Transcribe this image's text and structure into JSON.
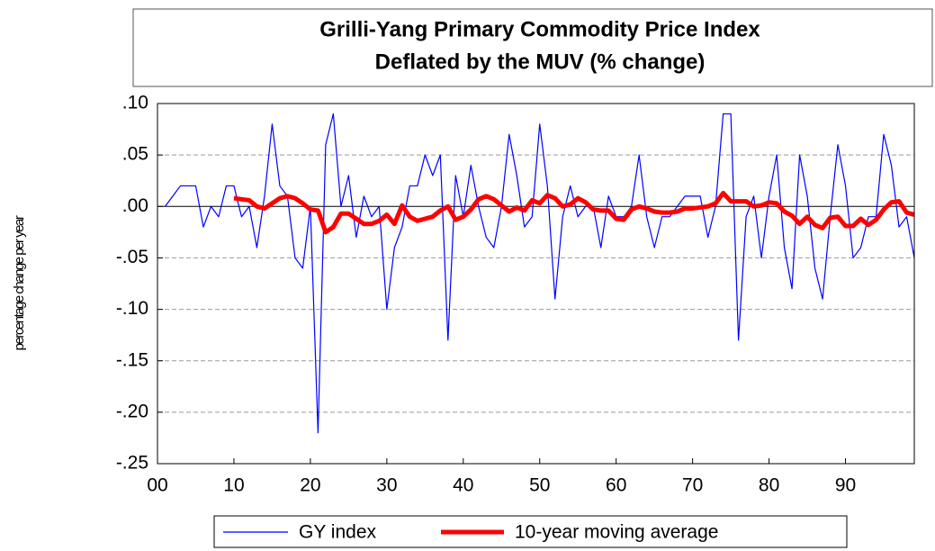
{
  "chart_data": {
    "type": "line",
    "title": "Grilli-Yang Primary Commodity Price Index",
    "subtitle": "Deflated by the MUV  (% change)",
    "y_label": "percentage change per year",
    "x": [
      1,
      2,
      3,
      4,
      5,
      6,
      7,
      8,
      9,
      10,
      11,
      12,
      13,
      14,
      15,
      16,
      17,
      18,
      19,
      20,
      21,
      22,
      23,
      24,
      25,
      26,
      27,
      28,
      29,
      30,
      31,
      32,
      33,
      34,
      35,
      36,
      37,
      38,
      39,
      40,
      41,
      42,
      43,
      44,
      45,
      46,
      47,
      48,
      49,
      50,
      51,
      52,
      53,
      54,
      55,
      56,
      57,
      58,
      59,
      60,
      61,
      62,
      63,
      64,
      65,
      66,
      67,
      68,
      69,
      70,
      71,
      72,
      73,
      74,
      75,
      76,
      77,
      78,
      79,
      80,
      81,
      82,
      83,
      84,
      85,
      86,
      87,
      88,
      89,
      90,
      91,
      92,
      93,
      94,
      95,
      96,
      97,
      98,
      99
    ],
    "series": [
      {
        "name": "GY index",
        "color": "#0000ff",
        "width": 1.2,
        "values": [
          0.0,
          0.01,
          0.02,
          0.02,
          0.02,
          -0.02,
          0.0,
          -0.01,
          0.02,
          0.02,
          -0.01,
          0.0,
          -0.04,
          0.01,
          0.08,
          0.02,
          0.01,
          -0.05,
          -0.06,
          0.0,
          -0.22,
          0.06,
          0.09,
          0.0,
          0.03,
          -0.03,
          0.01,
          -0.01,
          0.0,
          -0.1,
          -0.04,
          -0.02,
          0.02,
          0.02,
          0.05,
          0.03,
          0.05,
          -0.13,
          0.03,
          -0.01,
          0.04,
          0.0,
          -0.03,
          -0.04,
          0.0,
          0.07,
          0.03,
          -0.02,
          -0.01,
          0.08,
          0.02,
          -0.09,
          -0.01,
          0.02,
          -0.01,
          0.0,
          0.0,
          -0.04,
          0.01,
          -0.01,
          -0.01,
          0.0,
          0.05,
          -0.01,
          -0.04,
          -0.01,
          -0.01,
          0.0,
          0.01,
          0.01,
          0.01,
          -0.03,
          0.0,
          0.09,
          0.09,
          -0.13,
          -0.01,
          0.01,
          -0.05,
          0.01,
          0.05,
          -0.04,
          -0.08,
          0.05,
          0.01,
          -0.06,
          -0.09,
          -0.01,
          0.06,
          0.02,
          -0.05,
          -0.04,
          -0.01,
          -0.01,
          0.07,
          0.04,
          -0.02,
          -0.01,
          -0.05
        ]
      },
      {
        "name": "10-year moving average",
        "color": "#ff0000",
        "width": 5,
        "values": [
          null,
          null,
          null,
          null,
          null,
          null,
          null,
          null,
          null,
          0.008,
          0.007,
          0.006,
          0.0,
          -0.002,
          0.003,
          0.008,
          0.01,
          0.008,
          0.003,
          -0.003,
          -0.004,
          -0.025,
          -0.02,
          -0.007,
          -0.007,
          -0.012,
          -0.017,
          -0.017,
          -0.014,
          -0.008,
          -0.017,
          0.001,
          -0.01,
          -0.014,
          -0.012,
          -0.01,
          -0.004,
          0.0,
          -0.013,
          -0.01,
          -0.003,
          0.007,
          0.01,
          0.007,
          0.001,
          -0.005,
          -0.001,
          -0.004,
          0.006,
          0.003,
          0.011,
          0.008,
          0.0,
          0.002,
          0.008,
          0.004,
          -0.003,
          -0.004,
          -0.004,
          -0.012,
          -0.013,
          -0.003,
          0.0,
          -0.002,
          -0.005,
          -0.006,
          -0.006,
          -0.005,
          -0.002,
          -0.002,
          -0.001,
          0.0,
          0.003,
          0.013,
          0.005,
          0.005,
          0.005,
          0.0,
          0.001,
          0.004,
          0.003,
          -0.005,
          -0.009,
          -0.017,
          -0.01,
          -0.018,
          -0.021,
          -0.011,
          -0.01,
          -0.019,
          -0.019,
          -0.012,
          -0.018,
          -0.013,
          -0.003,
          0.004,
          0.005,
          -0.006,
          -0.008
        ]
      }
    ],
    "xlim": [
      0,
      99
    ],
    "xticks": [
      {
        "value": 0,
        "label": "00"
      },
      10,
      20,
      30,
      40,
      50,
      60,
      70,
      80,
      90
    ],
    "ylim": [
      -0.25,
      0.1
    ],
    "yticks": [
      {
        "value": -0.25,
        "label": "-.25"
      },
      {
        "value": -0.2,
        "label": "-.20"
      },
      {
        "value": -0.15,
        "label": "-.15"
      },
      {
        "value": -0.1,
        "label": "-.10"
      },
      {
        "value": -0.05,
        "label": "-.05"
      },
      {
        "value": 0,
        "label": ".00"
      },
      {
        "value": 0.05,
        "label": ".05"
      },
      {
        "value": 0.1,
        "label": ".10"
      }
    ],
    "grid": true,
    "legend": "bottom"
  }
}
